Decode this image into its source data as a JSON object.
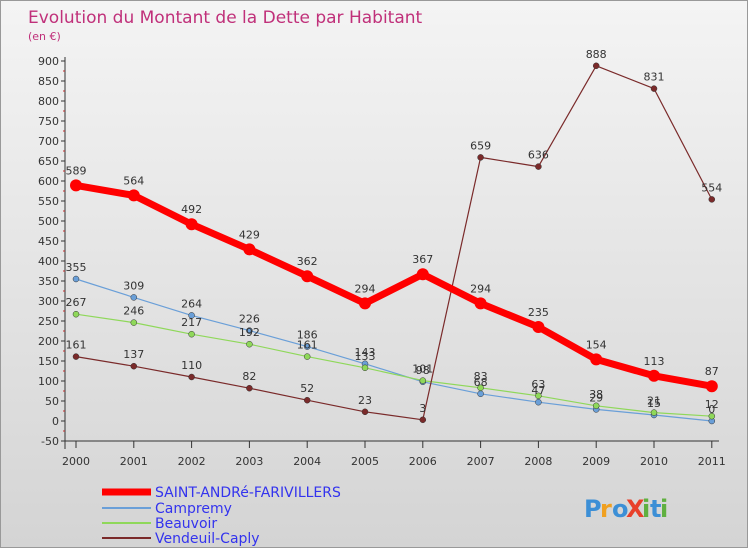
{
  "chart_data": {
    "type": "line",
    "title": "Evolution du Montant de la Dette par Habitant",
    "subtitle": "(en €)",
    "xlabel": "",
    "ylabel": "",
    "x": [
      "2000",
      "2001",
      "2002",
      "2003",
      "2004",
      "2005",
      "2006",
      "2007",
      "2008",
      "2009",
      "2010",
      "2011"
    ],
    "ylim": [
      -50,
      900
    ],
    "yticks": [
      -50,
      0,
      50,
      100,
      150,
      200,
      250,
      300,
      350,
      400,
      450,
      500,
      550,
      600,
      650,
      700,
      750,
      800,
      850,
      900
    ],
    "grid": false,
    "legend": "bottom-left",
    "series": [
      {
        "name": "SAINT-ANDRé-FARIVILLERS",
        "color": "#ff0000",
        "values": [
          589,
          564,
          492,
          429,
          362,
          294,
          367,
          294,
          235,
          154,
          113,
          87
        ]
      },
      {
        "name": "Campremy",
        "color": "#6a9fd8",
        "values": [
          355,
          309,
          264,
          226,
          186,
          143,
          98,
          68,
          47,
          29,
          15,
          0
        ]
      },
      {
        "name": "Beauvoir",
        "color": "#8fd85a",
        "values": [
          267,
          246,
          217,
          192,
          161,
          133,
          101,
          83,
          63,
          38,
          21,
          12
        ]
      },
      {
        "name": "Vendeuil-Caply",
        "color": "#7a2a2a",
        "values": [
          161,
          137,
          110,
          82,
          52,
          23,
          3,
          659,
          636,
          888,
          831,
          554
        ]
      }
    ],
    "value_labels": [
      {
        "series": 0,
        "index": 0,
        "text": "589"
      },
      {
        "series": 0,
        "index": 1,
        "text": "564"
      },
      {
        "series": 0,
        "index": 2,
        "text": "492"
      },
      {
        "series": 0,
        "index": 3,
        "text": "429"
      },
      {
        "series": 0,
        "index": 4,
        "text": "362"
      },
      {
        "series": 0,
        "index": 5,
        "text": "294"
      },
      {
        "series": 0,
        "index": 6,
        "text": "367"
      },
      {
        "series": 0,
        "index": 7,
        "text": "294"
      },
      {
        "series": 0,
        "index": 8,
        "text": "235"
      },
      {
        "series": 0,
        "index": 9,
        "text": "154"
      },
      {
        "series": 0,
        "index": 10,
        "text": "113"
      },
      {
        "series": 0,
        "index": 11,
        "text": "87"
      },
      {
        "series": 1,
        "index": 0,
        "text": "355"
      },
      {
        "series": 1,
        "index": 1,
        "text": "309"
      },
      {
        "series": 1,
        "index": 2,
        "text": "264"
      },
      {
        "series": 1,
        "index": 3,
        "text": "226"
      },
      {
        "series": 1,
        "index": 4,
        "text": "186"
      },
      {
        "series": 1,
        "index": 5,
        "text": "143"
      },
      {
        "series": 1,
        "index": 6,
        "text": "98"
      },
      {
        "series": 1,
        "index": 7,
        "text": "68"
      },
      {
        "series": 1,
        "index": 8,
        "text": "47"
      },
      {
        "series": 1,
        "index": 9,
        "text": "29"
      },
      {
        "series": 1,
        "index": 10,
        "text": "15"
      },
      {
        "series": 1,
        "index": 11,
        "text": "0"
      },
      {
        "series": 2,
        "index": 0,
        "text": "267"
      },
      {
        "series": 2,
        "index": 1,
        "text": "246"
      },
      {
        "series": 2,
        "index": 2,
        "text": "217"
      },
      {
        "series": 2,
        "index": 3,
        "text": "192"
      },
      {
        "series": 2,
        "index": 4,
        "text": "161"
      },
      {
        "series": 2,
        "index": 5,
        "text": "133"
      },
      {
        "series": 2,
        "index": 6,
        "text": "101"
      },
      {
        "series": 2,
        "index": 7,
        "text": "83"
      },
      {
        "series": 2,
        "index": 8,
        "text": "63"
      },
      {
        "series": 2,
        "index": 9,
        "text": "38"
      },
      {
        "series": 2,
        "index": 10,
        "text": "21"
      },
      {
        "series": 2,
        "index": 11,
        "text": "12"
      },
      {
        "series": 3,
        "index": 0,
        "text": "161"
      },
      {
        "series": 3,
        "index": 1,
        "text": "137"
      },
      {
        "series": 3,
        "index": 2,
        "text": "110"
      },
      {
        "series": 3,
        "index": 3,
        "text": "82"
      },
      {
        "series": 3,
        "index": 4,
        "text": "52"
      },
      {
        "series": 3,
        "index": 5,
        "text": "23"
      },
      {
        "series": 3,
        "index": 6,
        "text": "3"
      },
      {
        "series": 3,
        "index": 7,
        "text": "659"
      },
      {
        "series": 3,
        "index": 8,
        "text": "636"
      },
      {
        "series": 3,
        "index": 9,
        "text": "888"
      },
      {
        "series": 3,
        "index": 10,
        "text": "831"
      },
      {
        "series": 3,
        "index": 11,
        "text": "554"
      }
    ]
  },
  "logo": {
    "text": "ProXiti",
    "letters": [
      "P",
      "r",
      "o",
      "X",
      "i",
      "t",
      "i"
    ],
    "colors": [
      "#3c8fd6",
      "#f0a020",
      "#3c8fd6",
      "#e8402a",
      "#60b040",
      "#3c8fd6",
      "#60b040"
    ]
  }
}
